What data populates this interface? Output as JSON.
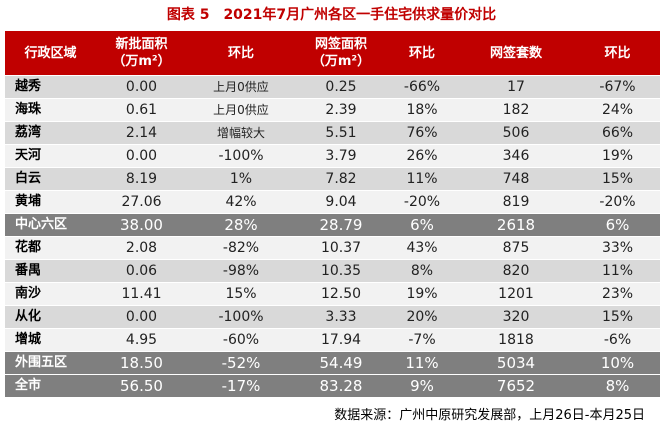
{
  "title": "图表 5　2021年7月广州各区一手住宅供求量价对比",
  "headers": {
    "district": "行政区域",
    "new_area": "新批面积",
    "new_area_unit": "（万m²）",
    "ring1": "环比",
    "signed_area": "网签面积",
    "signed_area_unit": "（万m²）",
    "ring2": "环比",
    "signed_units": "网签套数",
    "ring3": "环比"
  },
  "rows": [
    {
      "district": "越秀",
      "new_area": "0.00",
      "ring1": "上月0供应",
      "signed_area": "0.25",
      "ring2": "-66%",
      "units": "17",
      "ring3": "-67%",
      "summary": false,
      "note": true
    },
    {
      "district": "海珠",
      "new_area": "0.61",
      "ring1": "上月0供应",
      "signed_area": "2.39",
      "ring2": "18%",
      "units": "182",
      "ring3": "24%",
      "summary": false,
      "note": true
    },
    {
      "district": "荔湾",
      "new_area": "2.14",
      "ring1": "增幅较大",
      "signed_area": "5.51",
      "ring2": "76%",
      "units": "506",
      "ring3": "66%",
      "summary": false,
      "note": true
    },
    {
      "district": "天河",
      "new_area": "0.00",
      "ring1": "-100%",
      "signed_area": "3.79",
      "ring2": "26%",
      "units": "346",
      "ring3": "19%",
      "summary": false,
      "note": false
    },
    {
      "district": "白云",
      "new_area": "8.19",
      "ring1": "1%",
      "signed_area": "7.82",
      "ring2": "11%",
      "units": "748",
      "ring3": "15%",
      "summary": false,
      "note": false
    },
    {
      "district": "黄埔",
      "new_area": "27.06",
      "ring1": "42%",
      "signed_area": "9.04",
      "ring2": "-20%",
      "units": "819",
      "ring3": "-20%",
      "summary": false,
      "note": false
    },
    {
      "district": "中心六区",
      "new_area": "38.00",
      "ring1": "28%",
      "signed_area": "28.79",
      "ring2": "6%",
      "units": "2618",
      "ring3": "6%",
      "summary": true,
      "note": false
    },
    {
      "district": "花都",
      "new_area": "2.08",
      "ring1": "-82%",
      "signed_area": "10.37",
      "ring2": "43%",
      "units": "875",
      "ring3": "33%",
      "summary": false,
      "note": false
    },
    {
      "district": "番禺",
      "new_area": "0.06",
      "ring1": "-98%",
      "signed_area": "10.35",
      "ring2": "8%",
      "units": "820",
      "ring3": "11%",
      "summary": false,
      "note": false
    },
    {
      "district": "南沙",
      "new_area": "11.41",
      "ring1": "15%",
      "signed_area": "12.50",
      "ring2": "19%",
      "units": "1201",
      "ring3": "23%",
      "summary": false,
      "note": false
    },
    {
      "district": "从化",
      "new_area": "0.00",
      "ring1": "-100%",
      "signed_area": "3.33",
      "ring2": "20%",
      "units": "320",
      "ring3": "15%",
      "summary": false,
      "note": false
    },
    {
      "district": "增城",
      "new_area": "4.95",
      "ring1": "-60%",
      "signed_area": "17.94",
      "ring2": "-7%",
      "units": "1818",
      "ring3": "-6%",
      "summary": false,
      "note": false
    },
    {
      "district": "外围五区",
      "new_area": "18.50",
      "ring1": "-52%",
      "signed_area": "54.49",
      "ring2": "11%",
      "units": "5034",
      "ring3": "10%",
      "summary": true,
      "note": false
    },
    {
      "district": "全市",
      "new_area": "56.50",
      "ring1": "-17%",
      "signed_area": "83.28",
      "ring2": "9%",
      "units": "7652",
      "ring3": "8%",
      "summary": true,
      "note": false
    }
  ],
  "source": "数据来源：广州中原研究发展部，上月26日-本月25日",
  "colors": {
    "header": "#c00000",
    "summary": "#7f7f7f",
    "row_dark": "#d9d9d9",
    "row_light": "#f2f2f2"
  }
}
